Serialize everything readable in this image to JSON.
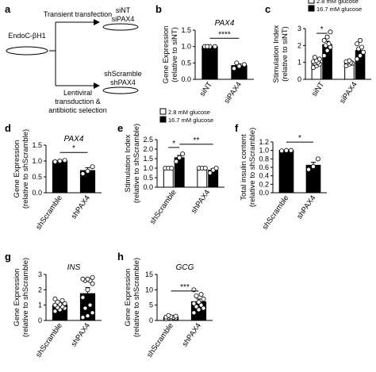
{
  "figure": {
    "panels": {
      "a": {
        "letter": "a",
        "source": "EndoC-βH1",
        "top_method": "Transient transfection",
        "top_lines": [
          "siNT",
          "siPAX4"
        ],
        "bottom_method_lines": [
          "Lentiviral",
          "transduction &",
          "antibiotic selection"
        ],
        "bottom_lines": [
          "shScramble",
          "shPAX4"
        ]
      },
      "b": {
        "letter": "b"
      },
      "c": {
        "letter": "c"
      },
      "d": {
        "letter": "d"
      },
      "e": {
        "letter": "e"
      },
      "f": {
        "letter": "f"
      },
      "g": {
        "letter": "g"
      },
      "h": {
        "letter": "h"
      }
    }
  },
  "colors": {
    "bar_black": "#000000",
    "bar_white": "#ffffff",
    "point_fill": "#ffffff",
    "line": "#000000"
  },
  "chart_data": [
    {
      "panel": "b",
      "type": "bar",
      "title": "PAX4",
      "ylabel": "Gene Expression\n(relative to siNT)",
      "ylim": [
        0,
        1.5
      ],
      "yticks": [
        "0.0",
        "0.5",
        "1.0",
        "1.5"
      ],
      "categories": [
        "siNT",
        "siPAX4"
      ],
      "values": [
        1.0,
        0.42
      ],
      "errors": [
        0.01,
        0.05
      ],
      "fills": [
        "black",
        "black"
      ],
      "points": [
        [
          1.0,
          1.0,
          1.0,
          1.0
        ],
        [
          0.33,
          0.4,
          0.45,
          0.5
        ]
      ],
      "significance": [
        {
          "from": 0,
          "to": 1,
          "label": "****"
        }
      ]
    },
    {
      "panel": "c",
      "type": "bar",
      "title": "",
      "ylabel": "Stimulation Index\n(relative to siNT)",
      "ylim": [
        0,
        3
      ],
      "yticks": [
        "0",
        "1",
        "2",
        "3"
      ],
      "legend": [
        "2.8 mM glucose",
        "16.7 mM glucose"
      ],
      "legend_position": "top",
      "categories": [
        "siNT",
        "siPAX4"
      ],
      "series": [
        {
          "name": "2.8 mM glucose",
          "values": [
            1.0,
            1.0
          ],
          "errors": [
            0.05,
            0.05
          ],
          "fill": "white",
          "points": [
            [
              0.7,
              0.8,
              0.9,
              0.95,
              1.0,
              1.05,
              1.1,
              1.2,
              1.3
            ],
            [
              0.8,
              0.9,
              0.95,
              1.0,
              1.0,
              1.05,
              1.1
            ]
          ]
        },
        {
          "name": "16.7 mM glucose",
          "values": [
            2.05,
            1.7
          ],
          "errors": [
            0.2,
            0.18
          ],
          "fill": "black",
          "points": [
            [
              1.4,
              1.7,
              1.9,
              2.0,
              2.1,
              2.3,
              2.5,
              2.8
            ],
            [
              1.2,
              1.4,
              1.6,
              1.8,
              1.9,
              2.1,
              2.3
            ]
          ]
        }
      ],
      "significance": [
        {
          "from": 0,
          "to": 1,
          "label": "*"
        }
      ]
    },
    {
      "panel": "d",
      "type": "bar",
      "title": "PAX4",
      "ylabel": "Gene Expression\n(relative to shScramble)",
      "ylim": [
        0,
        1.5
      ],
      "yticks": [
        "0.0",
        "0.5",
        "1.0",
        "1.5"
      ],
      "categories": [
        "shScramble",
        "shPAX4"
      ],
      "values": [
        1.0,
        0.7
      ],
      "errors": [
        0.02,
        0.09
      ],
      "fills": [
        "black",
        "black"
      ],
      "points": [
        [
          0.98,
          1.0,
          1.02
        ],
        [
          0.6,
          0.68,
          0.82
        ]
      ],
      "significance": [
        {
          "from": 0,
          "to": 1,
          "label": "*"
        }
      ]
    },
    {
      "panel": "e",
      "type": "bar",
      "title": "",
      "ylabel": "Stimulation Index\n(relative to shScramble)",
      "ylim": [
        0,
        2.5
      ],
      "yticks": [
        "0.0",
        "0.5",
        "1.0",
        "1.5",
        "2.0",
        "2.5"
      ],
      "legend": [
        "2.8 mM glucose",
        "16.7 mM glucose"
      ],
      "legend_position": "top",
      "categories": [
        "shScramble",
        "shPAX4"
      ],
      "series": [
        {
          "name": "2.8 mM glucose",
          "values": [
            1.0,
            1.0
          ],
          "errors": [
            0.0,
            0.0
          ],
          "fill": "white",
          "points": [
            [
              1.0,
              1.0,
              1.0
            ],
            [
              1.0,
              1.0,
              1.0
            ]
          ]
        },
        {
          "name": "16.7 mM glucose",
          "values": [
            1.55,
            0.9
          ],
          "errors": [
            0.12,
            0.08
          ],
          "fill": "black",
          "points": [
            [
              1.35,
              1.55,
              1.75
            ],
            [
              0.75,
              0.9,
              1.0
            ]
          ]
        }
      ],
      "significance": [
        {
          "from": 0,
          "to": 1,
          "label": "*",
          "scope": "shScramble"
        },
        {
          "from": 1,
          "to": 3,
          "label": "**",
          "scope": "across"
        }
      ]
    },
    {
      "panel": "f",
      "type": "bar",
      "title": "",
      "ylabel": "Total insulin content\n(relative to shScramble)",
      "ylim": [
        0,
        1.2
      ],
      "yticks": [
        "0.0",
        "0.2",
        "0.4",
        "0.6",
        "0.8",
        "1.0",
        "1.2"
      ],
      "categories": [
        "shScramble",
        "shPAX4"
      ],
      "values": [
        1.0,
        0.65
      ],
      "errors": [
        0.01,
        0.07
      ],
      "fills": [
        "black",
        "black"
      ],
      "points": [
        [
          0.99,
          1.0,
          1.0
        ],
        [
          0.55,
          0.62,
          0.8
        ]
      ],
      "significance": [
        {
          "from": 0,
          "to": 1,
          "label": "*"
        }
      ]
    },
    {
      "panel": "g",
      "type": "bar",
      "title": "INS",
      "ylabel": "Gene Expression\n(relative to shScramble)",
      "ylim": [
        0,
        3
      ],
      "yticks": [
        "0",
        "1",
        "2",
        "3"
      ],
      "categories": [
        "shScramble",
        "shPAX4"
      ],
      "values": [
        1.0,
        1.75
      ],
      "errors": [
        0.1,
        0.4
      ],
      "fills": [
        "black",
        "black"
      ],
      "points": [
        [
          0.6,
          0.7,
          0.8,
          0.85,
          0.9,
          1.0,
          1.05,
          1.1,
          1.2,
          1.3,
          1.4
        ],
        [
          0.2,
          0.3,
          0.5,
          0.8,
          1.0,
          1.5,
          2.0,
          2.4,
          2.6,
          2.6,
          2.7,
          2.7,
          2.8
        ]
      ],
      "significance": []
    },
    {
      "panel": "h",
      "type": "bar",
      "title": "GCG",
      "ylabel": "Gene Expression\n(relative to shScramble)",
      "ylim": [
        0,
        15
      ],
      "yticks": [
        "0",
        "5",
        "10",
        "15"
      ],
      "categories": [
        "shScramble",
        "shPAX4"
      ],
      "values": [
        1.0,
        6.1
      ],
      "errors": [
        0.15,
        0.9
      ],
      "fills": [
        "black",
        "black"
      ],
      "points": [
        [
          0.5,
          0.7,
          0.8,
          0.9,
          1.0,
          1.1,
          1.2,
          1.4,
          1.6
        ],
        [
          2.5,
          3.5,
          4.0,
          4.5,
          5.0,
          5.5,
          6.0,
          7.0,
          8.0,
          8.5,
          10.0
        ]
      ],
      "significance": [
        {
          "from": 0,
          "to": 1,
          "label": "***"
        }
      ]
    }
  ]
}
